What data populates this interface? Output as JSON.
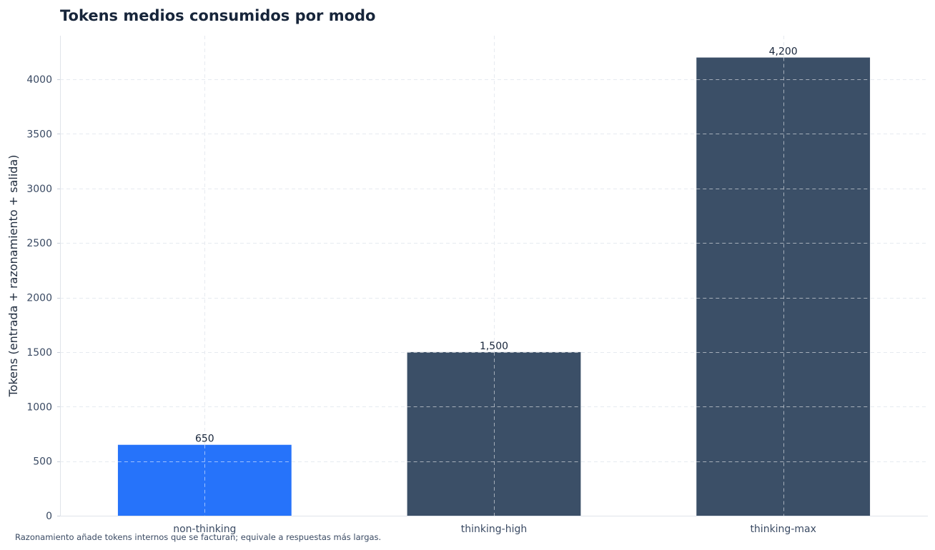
{
  "chart_data": {
    "type": "bar",
    "title": "Tokens medios consumidos por modo",
    "xlabel": "",
    "ylabel": "Tokens (entrada + razonamiento + salida)",
    "categories": [
      "non-thinking",
      "thinking-high",
      "thinking-max"
    ],
    "values": [
      650,
      1500,
      4200
    ],
    "value_labels": [
      "650",
      "1,500",
      "4,200"
    ],
    "bar_colors": [
      "#2673fa",
      "#3b4f67",
      "#3b4f67"
    ],
    "ylim": [
      0,
      4400
    ],
    "yticks": [
      0,
      500,
      1000,
      1500,
      2000,
      2500,
      3000,
      3500,
      4000
    ],
    "grid": true,
    "legend": "none"
  },
  "footnote": "Razonamiento añade tokens internos que se facturan; equivale a respuestas más largas."
}
